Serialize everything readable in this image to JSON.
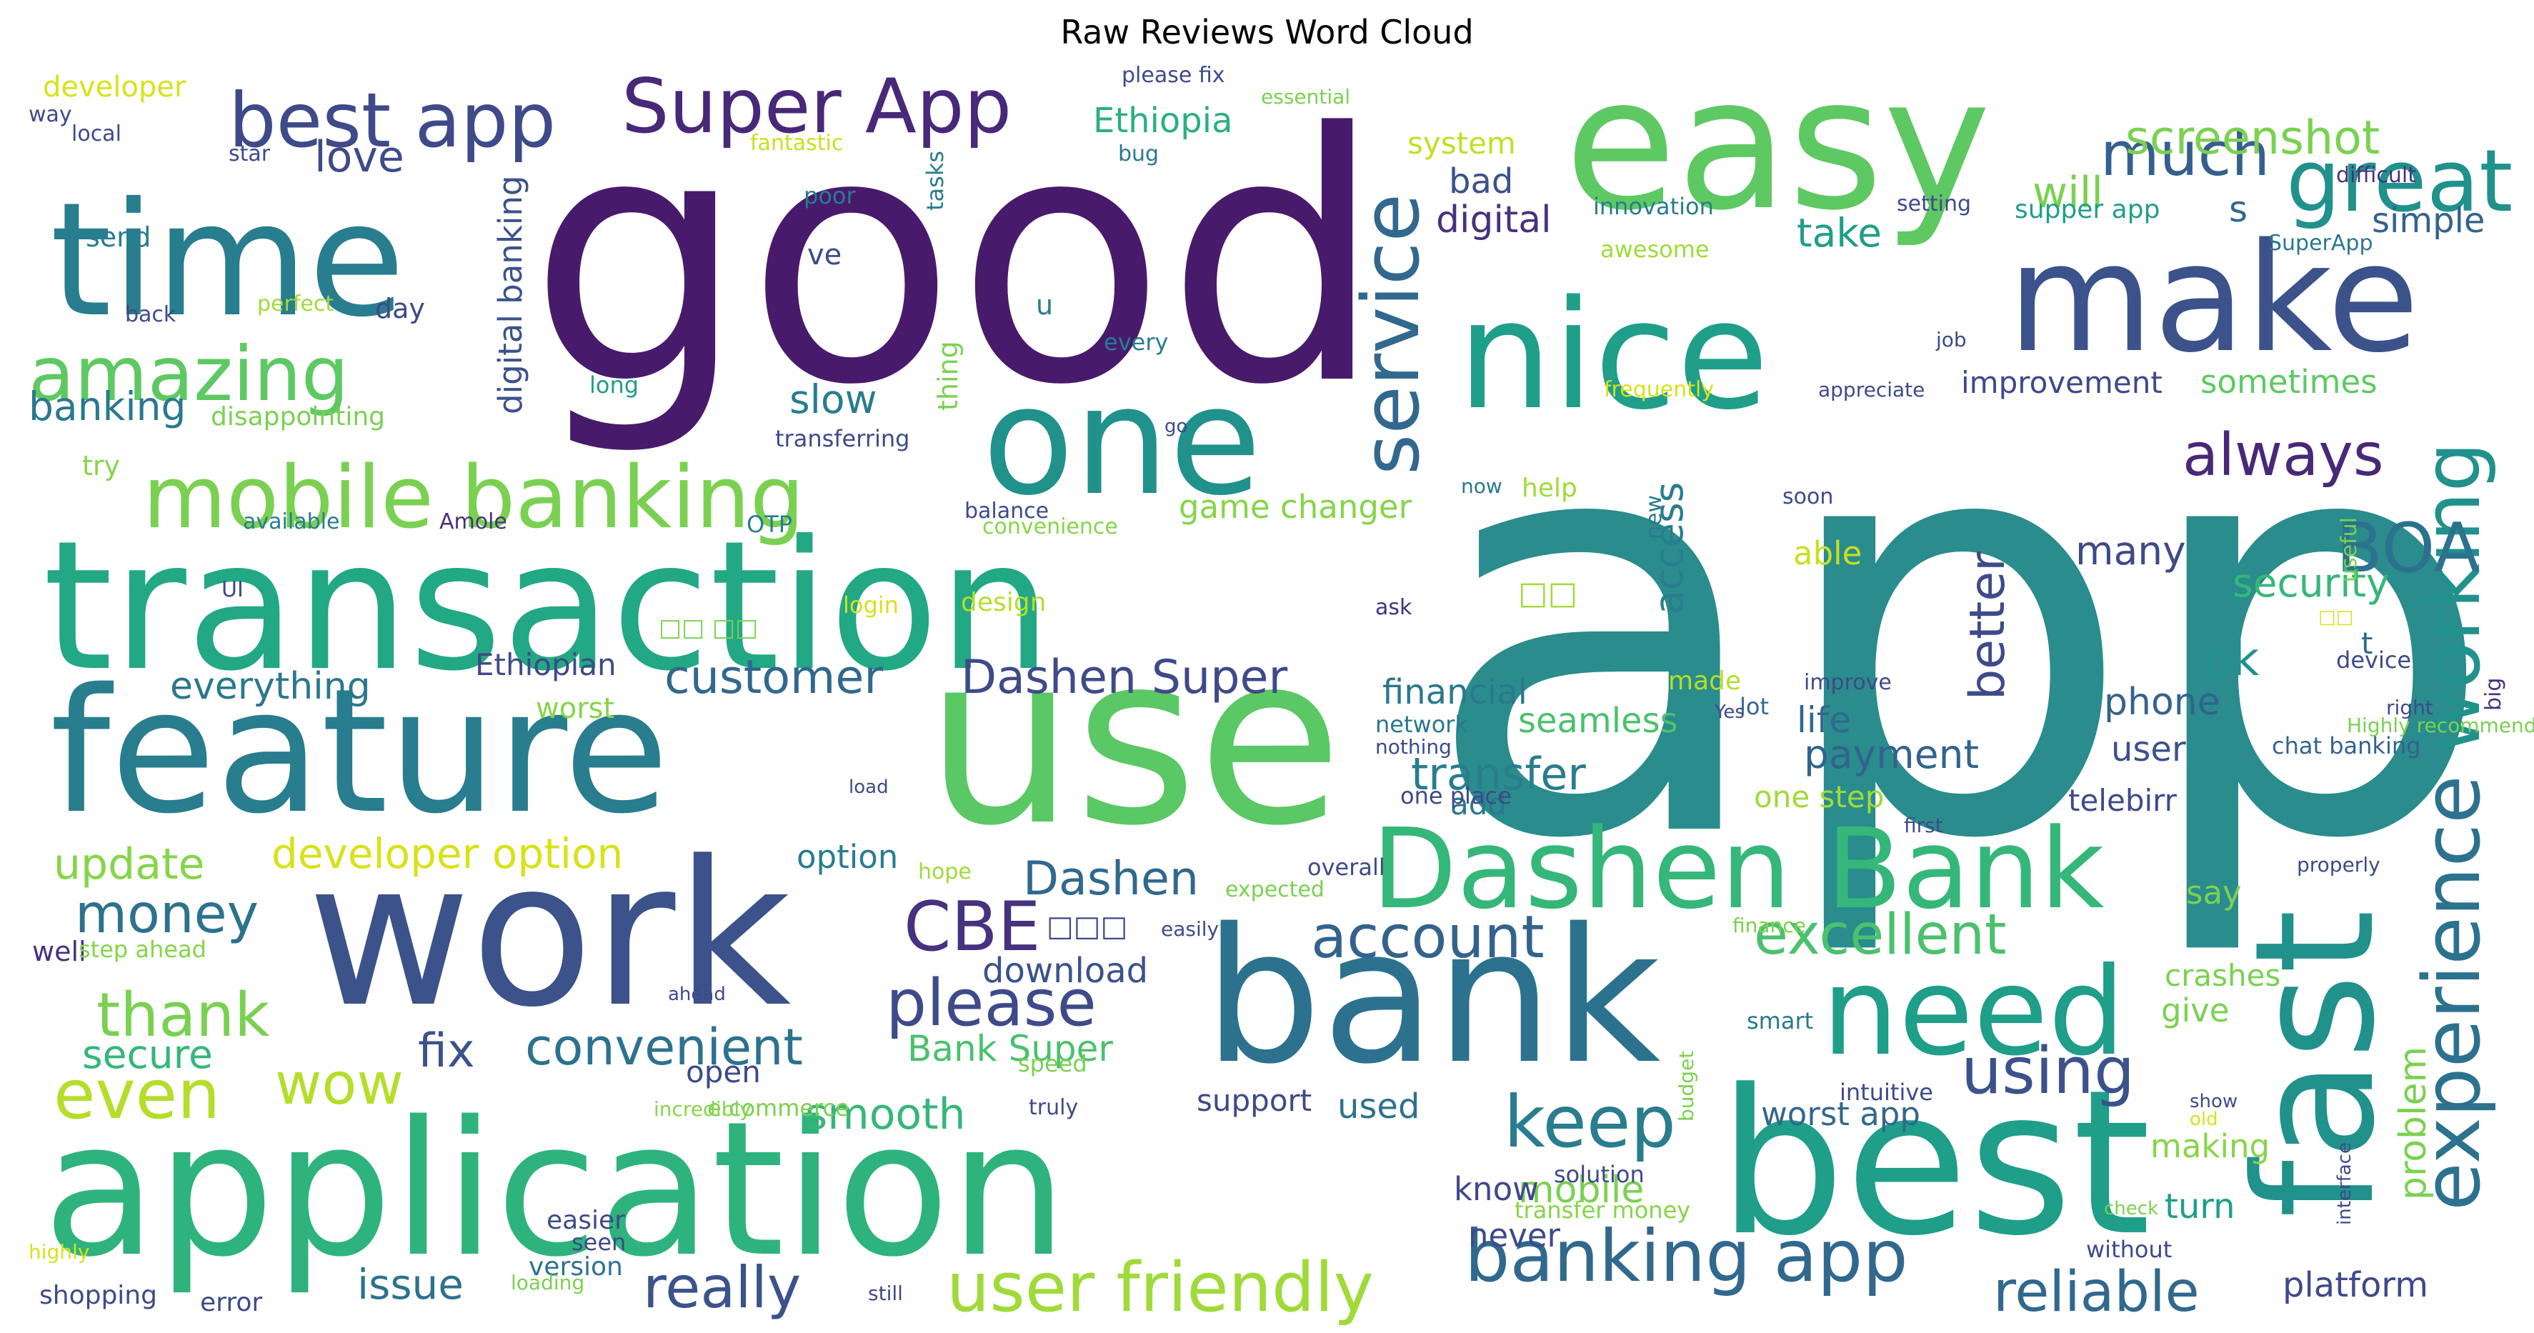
{
  "title": "Raw Reviews Word Cloud",
  "words": [
    {
      "t": "app",
      "c": "#2a8c8c"
    },
    {
      "t": "good",
      "c": "#481a6c"
    },
    {
      "t": "use",
      "c": "#5ac864"
    },
    {
      "t": "feature",
      "c": "#287d8e"
    },
    {
      "t": "transaction",
      "c": "#22a884"
    },
    {
      "t": "application",
      "c": "#2eb37c"
    },
    {
      "t": "work",
      "c": "#3b528b"
    },
    {
      "t": "bank",
      "c": "#2c728e"
    },
    {
      "t": "best",
      "c": "#1f9e89"
    },
    {
      "t": "fast",
      "c": "#21918c"
    },
    {
      "t": "easy",
      "c": "#5ec962"
    },
    {
      "t": "nice",
      "c": "#1f9e89"
    },
    {
      "t": "make",
      "c": "#3b528b"
    },
    {
      "t": "one",
      "c": "#21918c"
    },
    {
      "t": "time",
      "c": "#287d8e"
    },
    {
      "t": "Dashen Bank",
      "c": "#35b779"
    },
    {
      "t": "need",
      "c": "#1f9e89"
    },
    {
      "t": "mobile banking",
      "c": "#7ad151"
    },
    {
      "t": "amazing",
      "c": "#5ec962"
    },
    {
      "t": "best app",
      "c": "#3e4a89"
    },
    {
      "t": "Super App",
      "c": "#482878"
    },
    {
      "t": "service",
      "c": "#31688e"
    },
    {
      "t": "experience",
      "c": "#2c728e"
    },
    {
      "t": "working",
      "c": "#21918c"
    },
    {
      "t": "great",
      "c": "#21918c"
    },
    {
      "t": "much",
      "c": "#35608d"
    },
    {
      "t": "screenshot",
      "c": "#7ad151"
    },
    {
      "t": "banking app",
      "c": "#31688e"
    },
    {
      "t": "user friendly",
      "c": "#a0da39"
    },
    {
      "t": "keep",
      "c": "#287d8e"
    },
    {
      "t": "using",
      "c": "#3b528b"
    },
    {
      "t": "reliable",
      "c": "#31688e"
    },
    {
      "t": "BOA",
      "c": "#2c728e"
    },
    {
      "t": "always",
      "c": "#482878"
    },
    {
      "t": "CBE",
      "c": "#46327e"
    },
    {
      "t": "please",
      "c": "#3e4a89"
    },
    {
      "t": "account",
      "c": "#33638d"
    },
    {
      "t": "excellent",
      "c": "#4ac16d"
    },
    {
      "t": "really",
      "c": "#3b528b"
    },
    {
      "t": "thank",
      "c": "#7ad151"
    },
    {
      "t": "even",
      "c": "#b5de2b"
    },
    {
      "t": "money",
      "c": "#2c728e"
    },
    {
      "t": "update",
      "c": "#86d549"
    },
    {
      "t": "wow",
      "c": "#b5de2b"
    },
    {
      "t": "convenient",
      "c": "#2c728e"
    },
    {
      "t": "customer",
      "c": "#31688e"
    },
    {
      "t": "Dashen Super",
      "c": "#3e4a89"
    },
    {
      "t": "developer option",
      "c": "#d8e219"
    },
    {
      "t": "love",
      "c": "#3e4a89"
    },
    {
      "t": "banking",
      "c": "#2a788e"
    },
    {
      "t": "everything",
      "c": "#2a788e"
    },
    {
      "t": "transfer",
      "c": "#287d8e"
    },
    {
      "t": "better",
      "c": "#3e4a89"
    },
    {
      "t": "ok",
      "c": "#21918c"
    },
    {
      "t": "slow",
      "c": "#287d8e"
    },
    {
      "t": "fix",
      "c": "#3b528b"
    },
    {
      "t": "smooth",
      "c": "#35b779"
    },
    {
      "t": "Bank Super",
      "c": "#4ac16d"
    },
    {
      "t": "Dashen",
      "c": "#31688e"
    },
    {
      "t": "secure",
      "c": "#35b779"
    },
    {
      "t": "payment",
      "c": "#33638d"
    },
    {
      "t": "security",
      "c": "#35b779"
    },
    {
      "t": "platform",
      "c": "#3e4a89"
    },
    {
      "t": "issue",
      "c": "#2c728e"
    },
    {
      "t": "mobile",
      "c": "#7ad151"
    },
    {
      "t": "financial",
      "c": "#2a788e"
    },
    {
      "t": "seamless",
      "c": "#4ac16d"
    },
    {
      "t": "many",
      "c": "#3e4a89"
    },
    {
      "t": "access",
      "c": "#287d8e"
    },
    {
      "t": "life",
      "c": "#31688e"
    },
    {
      "t": "phone",
      "c": "#33638d"
    },
    {
      "t": "user",
      "c": "#3b528b"
    },
    {
      "t": "take",
      "c": "#1f9e89"
    },
    {
      "t": "will",
      "c": "#7ad151"
    },
    {
      "t": "s",
      "c": "#31688e"
    },
    {
      "t": "digital",
      "c": "#46327e"
    },
    {
      "t": "bad",
      "c": "#3b528b"
    },
    {
      "t": "game changer",
      "c": "#86d549"
    },
    {
      "t": "Ethiopia",
      "c": "#2ab07f"
    },
    {
      "t": "problem",
      "c": "#7ad151"
    },
    {
      "t": "turn",
      "c": "#1f9e89"
    },
    {
      "t": "making",
      "c": "#86d549"
    },
    {
      "t": "know",
      "c": "#3e4a89"
    },
    {
      "t": "never",
      "c": "#3e4a89"
    },
    {
      "t": "used",
      "c": "#2c728e"
    },
    {
      "t": "worst app",
      "c": "#31688e"
    },
    {
      "t": "crashes",
      "c": "#7ad151"
    },
    {
      "t": "give",
      "c": "#7ad151"
    },
    {
      "t": "say",
      "c": "#7ad151"
    },
    {
      "t": "sometimes",
      "c": "#5ec962"
    },
    {
      "t": "improvement",
      "c": "#3e4a89"
    },
    {
      "t": "simple",
      "c": "#33638d"
    },
    {
      "t": "system",
      "c": "#c2df23"
    },
    {
      "t": "download",
      "c": "#3b528b"
    },
    {
      "t": "option",
      "c": "#287d8e"
    },
    {
      "t": "open",
      "c": "#3e4a89"
    },
    {
      "t": "telebirr",
      "c": "#3e4a89"
    },
    {
      "t": "one step",
      "c": "#a0da39"
    },
    {
      "t": "add",
      "c": "#2a788e"
    },
    {
      "t": "able",
      "c": "#c8e020"
    },
    {
      "t": "support",
      "c": "#3e4a89"
    },
    {
      "t": "worst",
      "c": "#86d549"
    },
    {
      "t": "Ethiopian",
      "c": "#3e4a89"
    },
    {
      "t": "digital banking",
      "c": "#3b528b"
    },
    {
      "t": "developer",
      "c": "#d8e219"
    },
    {
      "t": "send",
      "c": "#287d8e"
    },
    {
      "t": "day",
      "c": "#3e4a89"
    },
    {
      "t": "try",
      "c": "#86d549"
    },
    {
      "t": "well",
      "c": "#46327e"
    },
    {
      "t": "shopping",
      "c": "#3e4a89"
    },
    {
      "t": "error",
      "c": "#3e4a89"
    },
    {
      "t": "version",
      "c": "#2c728e"
    },
    {
      "t": "easier",
      "c": "#3e4a89"
    },
    {
      "t": "seen",
      "c": "#3e4a89"
    },
    {
      "t": "transfer money",
      "c": "#86d549"
    },
    {
      "t": "solution",
      "c": "#3e4a89"
    },
    {
      "t": "intuitive",
      "c": "#3e4a89"
    },
    {
      "t": "made",
      "c": "#b5de2b"
    },
    {
      "t": "network",
      "c": "#2a788e"
    },
    {
      "t": "lot",
      "c": "#31688e"
    },
    {
      "t": "one place",
      "c": "#3e4a89"
    },
    {
      "t": "chat banking",
      "c": "#33638d"
    },
    {
      "t": "help",
      "c": "#a0da39"
    },
    {
      "t": "supper app",
      "c": "#1f9e89"
    },
    {
      "t": "innovation",
      "c": "#287d8e"
    },
    {
      "t": "awesome",
      "c": "#a0da39"
    },
    {
      "t": "tasks",
      "c": "#287d8e"
    },
    {
      "t": "poor",
      "c": "#287d8e"
    },
    {
      "t": "ve",
      "c": "#3e4a89"
    },
    {
      "t": "u",
      "c": "#287d8e"
    },
    {
      "t": "every",
      "c": "#287d8e"
    },
    {
      "t": "thing",
      "c": "#7ad151"
    },
    {
      "t": "transferring",
      "c": "#3e4a89"
    },
    {
      "t": "convenience",
      "c": "#86d549"
    },
    {
      "t": "balance",
      "c": "#3e4a89"
    },
    {
      "t": "OTP",
      "c": "#287d8e"
    },
    {
      "t": "login",
      "c": "#d8e219"
    },
    {
      "t": "design",
      "c": "#b5de2b"
    },
    {
      "t": "ask",
      "c": "#46327e"
    },
    {
      "t": "Amole",
      "c": "#46327e"
    },
    {
      "t": "available",
      "c": "#287d8e"
    },
    {
      "t": "UI",
      "c": "#3e4a89"
    },
    {
      "t": "long",
      "c": "#1f9e89"
    },
    {
      "t": "disappointing",
      "c": "#7ad151"
    },
    {
      "t": "back",
      "c": "#3e4a89"
    },
    {
      "t": "perfect",
      "c": "#a0da39"
    },
    {
      "t": "local",
      "c": "#3e4a89"
    },
    {
      "t": "way",
      "c": "#3e4a89"
    },
    {
      "t": "star",
      "c": "#3e4a89"
    },
    {
      "t": "fantastic",
      "c": "#c8e020"
    },
    {
      "t": "please fix",
      "c": "#3e4a89"
    },
    {
      "t": "bug",
      "c": "#2a788e"
    },
    {
      "t": "essential",
      "c": "#7ad151"
    },
    {
      "t": "setting",
      "c": "#3e4a89"
    },
    {
      "t": "difficult",
      "c": "#46327e"
    },
    {
      "t": "SuperApp",
      "c": "#2a788e"
    },
    {
      "t": "job",
      "c": "#3e4a89"
    },
    {
      "t": "frequently",
      "c": "#d8e219"
    },
    {
      "t": "appreciate",
      "c": "#3e4a89"
    },
    {
      "t": "go",
      "c": "#3e4a89"
    },
    {
      "t": "useful",
      "c": "#7ad151"
    },
    {
      "t": "new",
      "c": "#2a788e"
    },
    {
      "t": "now",
      "c": "#2a788e"
    },
    {
      "t": "soon",
      "c": "#3e4a89"
    },
    {
      "t": "improve",
      "c": "#3e4a89"
    },
    {
      "t": "device",
      "c": "#3e4a89"
    },
    {
      "t": "big",
      "c": "#46327e"
    },
    {
      "t": "Highly recommended",
      "c": "#7ad151"
    },
    {
      "t": "right",
      "c": "#3e4a89"
    },
    {
      "t": "nothing",
      "c": "#3e4a89"
    },
    {
      "t": "Yes",
      "c": "#3e4a89"
    },
    {
      "t": "load",
      "c": "#3e4a89"
    },
    {
      "t": "first",
      "c": "#3e4a89"
    },
    {
      "t": "finance",
      "c": "#7ad151"
    },
    {
      "t": "smart",
      "c": "#2a788e"
    },
    {
      "t": "properly",
      "c": "#3e4a89"
    },
    {
      "t": "hope",
      "c": "#a0da39"
    },
    {
      "t": "expected",
      "c": "#7ad151"
    },
    {
      "t": "overall",
      "c": "#3e4a89"
    },
    {
      "t": "easily",
      "c": "#3e4a89"
    },
    {
      "t": "step ahead",
      "c": "#86d549"
    },
    {
      "t": "ahead",
      "c": "#3e4a89"
    },
    {
      "t": "speed",
      "c": "#7ad151"
    },
    {
      "t": "e commerce",
      "c": "#7ad151"
    },
    {
      "t": "incredibly",
      "c": "#86d549"
    },
    {
      "t": "truly",
      "c": "#3e4a89"
    },
    {
      "t": "budget",
      "c": "#7ad151"
    },
    {
      "t": "show",
      "c": "#3e4a89"
    },
    {
      "t": "old",
      "c": "#d8e219"
    },
    {
      "t": "interface",
      "c": "#3e4a89"
    },
    {
      "t": "check",
      "c": "#7ad151"
    },
    {
      "t": "without",
      "c": "#3e4a89"
    },
    {
      "t": "highly",
      "c": "#d8e219"
    },
    {
      "t": "still",
      "c": "#3e4a89"
    },
    {
      "t": "loading",
      "c": "#7ad151"
    },
    {
      "t": "□□ □□",
      "c": "#7ad151"
    },
    {
      "t": "□□",
      "c": "#a0da39"
    },
    {
      "t": "□□□",
      "c": "#3e4a89"
    },
    {
      "t": "□□",
      "c": "#d8e219"
    },
    {
      "t": "t",
      "c": "#31688e"
    }
  ]
}
